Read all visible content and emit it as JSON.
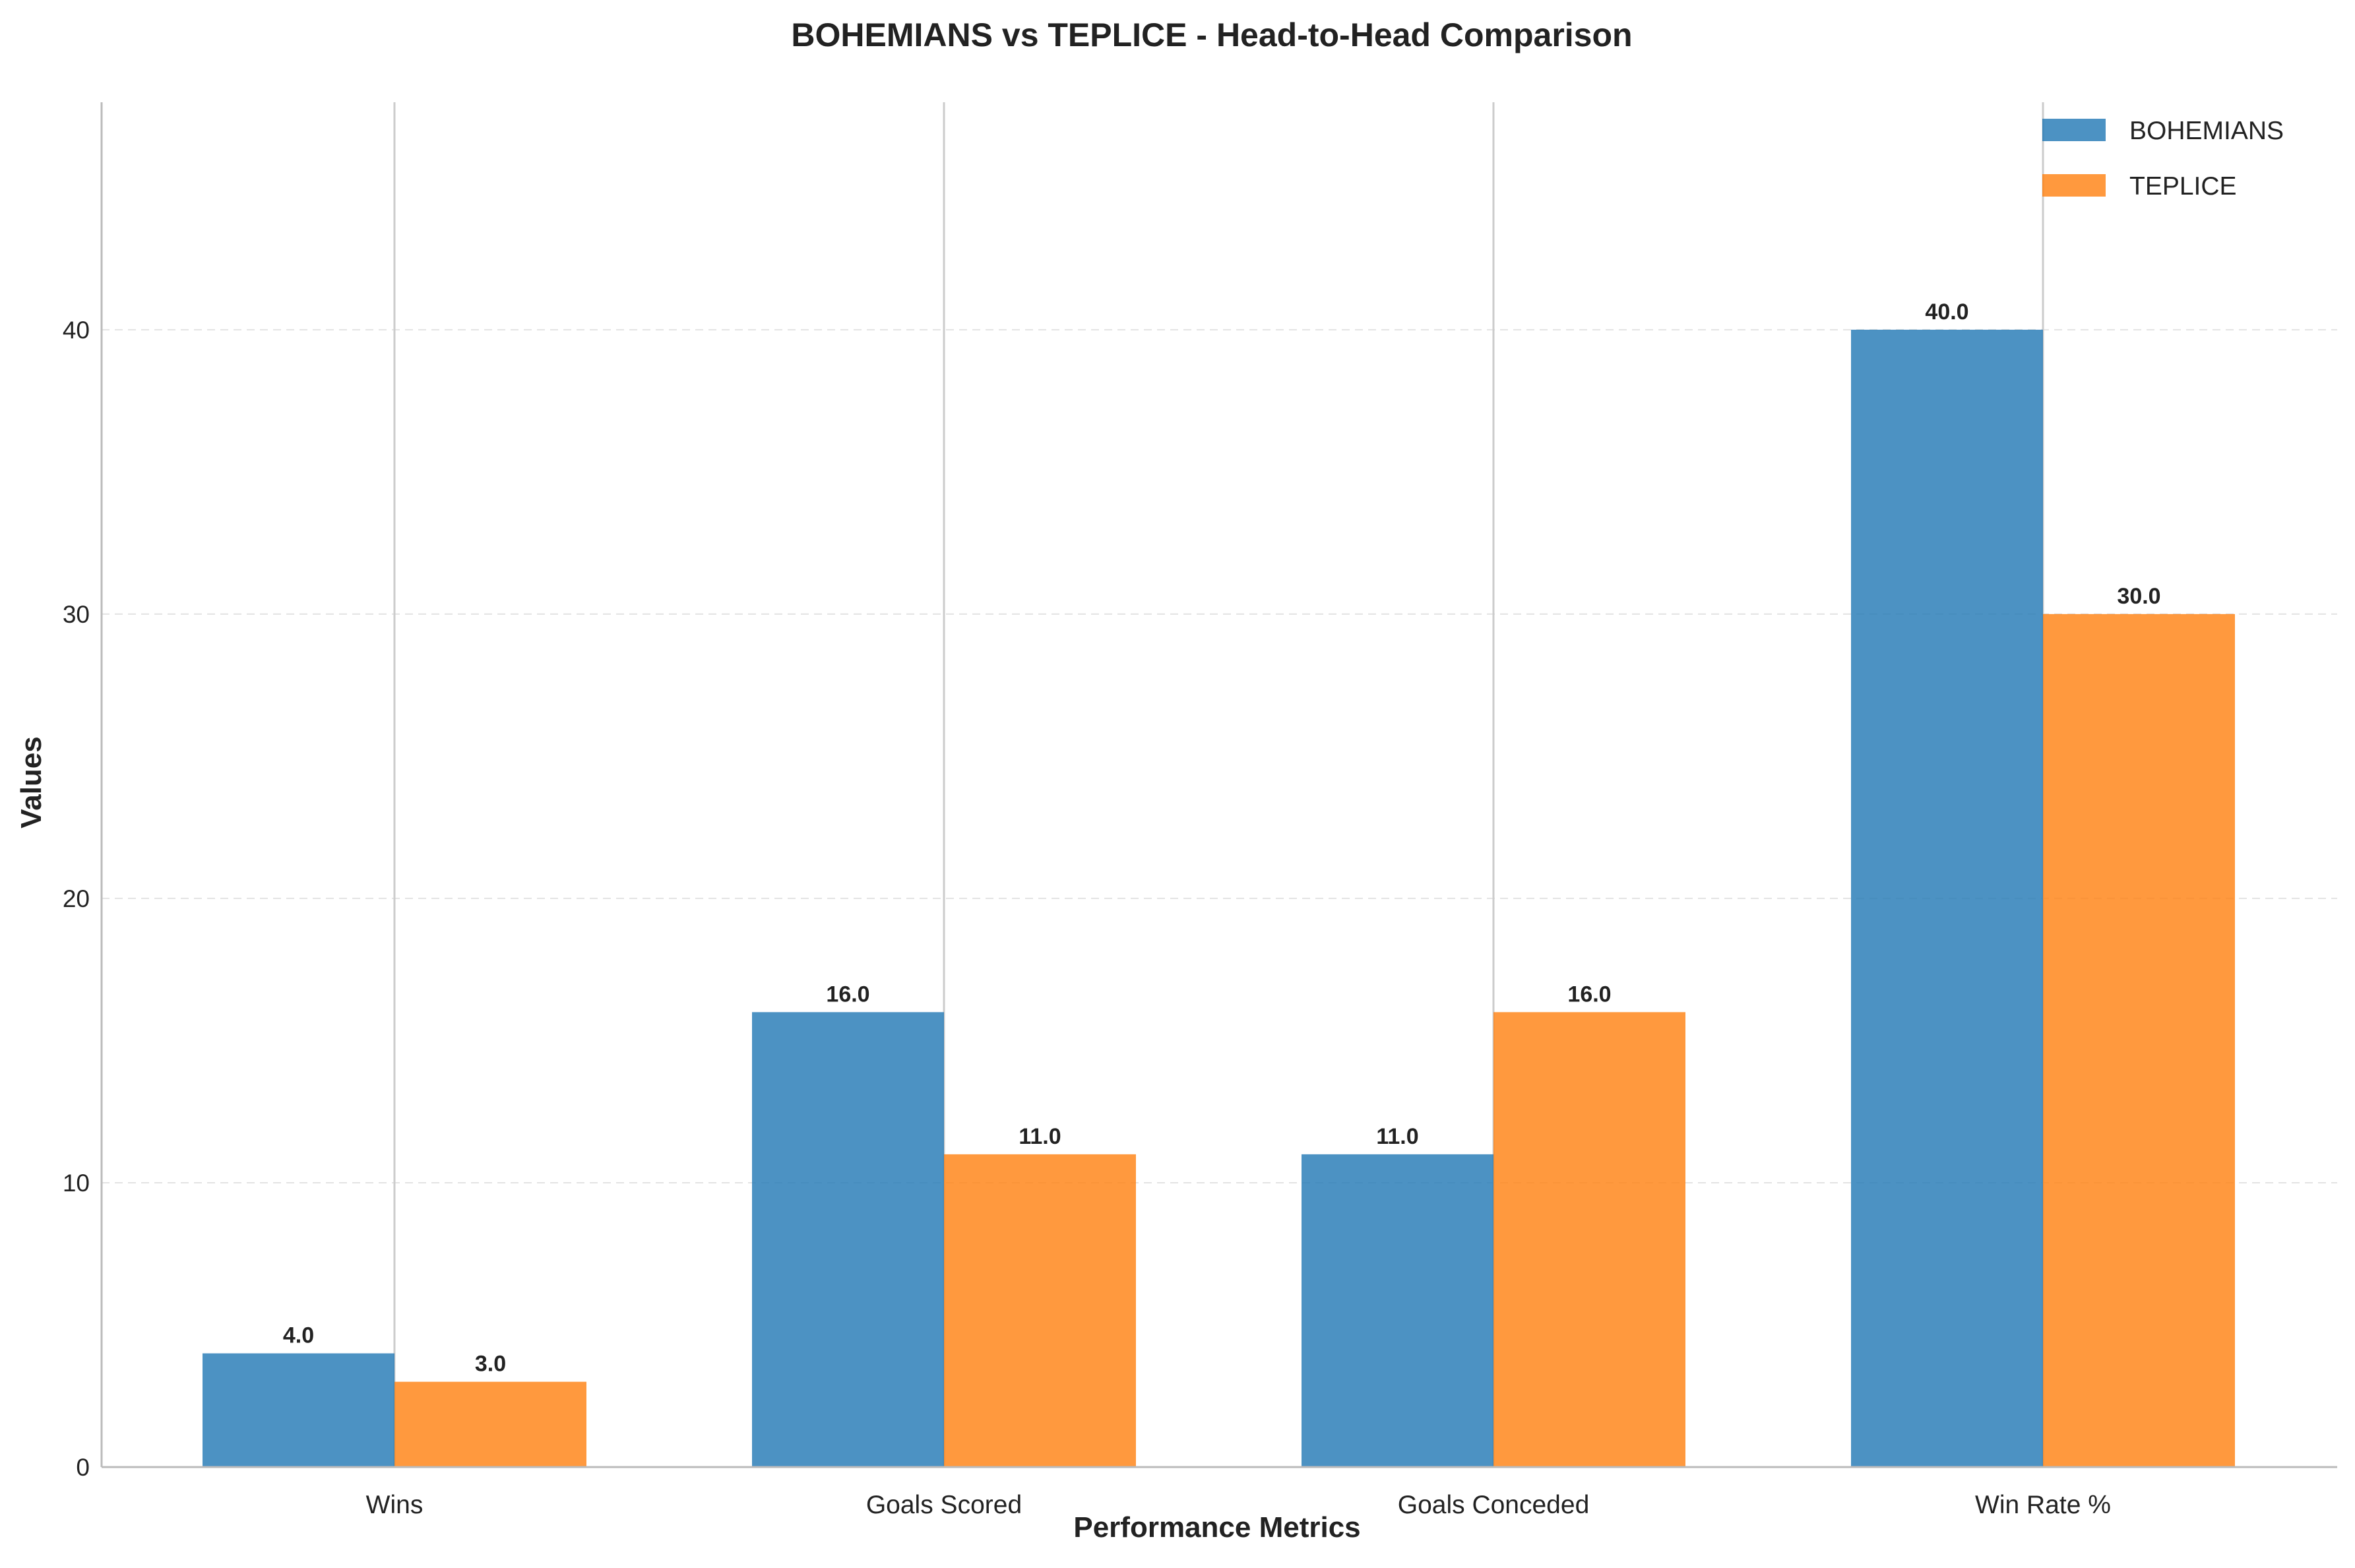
{
  "chart_data": {
    "type": "bar",
    "title": "BOHEMIANS vs TEPLICE - Head-to-Head Comparison",
    "xlabel": "Performance Metrics",
    "ylabel": "Values",
    "categories": [
      "Wins",
      "Goals Scored",
      "Goals Conceded",
      "Win Rate %"
    ],
    "series": [
      {
        "name": "BOHEMIANS",
        "color": "#1f77b4",
        "values": [
          4.0,
          16.0,
          11.0,
          40.0
        ],
        "labels": [
          "4.0",
          "16.0",
          "11.0",
          "40.0"
        ]
      },
      {
        "name": "TEPLICE",
        "color": "#ff7f0e",
        "values": [
          3.0,
          11.0,
          16.0,
          30.0
        ],
        "labels": [
          "3.0",
          "11.0",
          "16.0",
          "30.0"
        ]
      }
    ],
    "ylim": [
      0,
      48
    ],
    "yticks": [
      0,
      10,
      20,
      30,
      40
    ],
    "ytick_labels": [
      "0",
      "10",
      "20",
      "30",
      "40"
    ],
    "grid": "horizontal dashed",
    "legend_position": "top-right"
  }
}
